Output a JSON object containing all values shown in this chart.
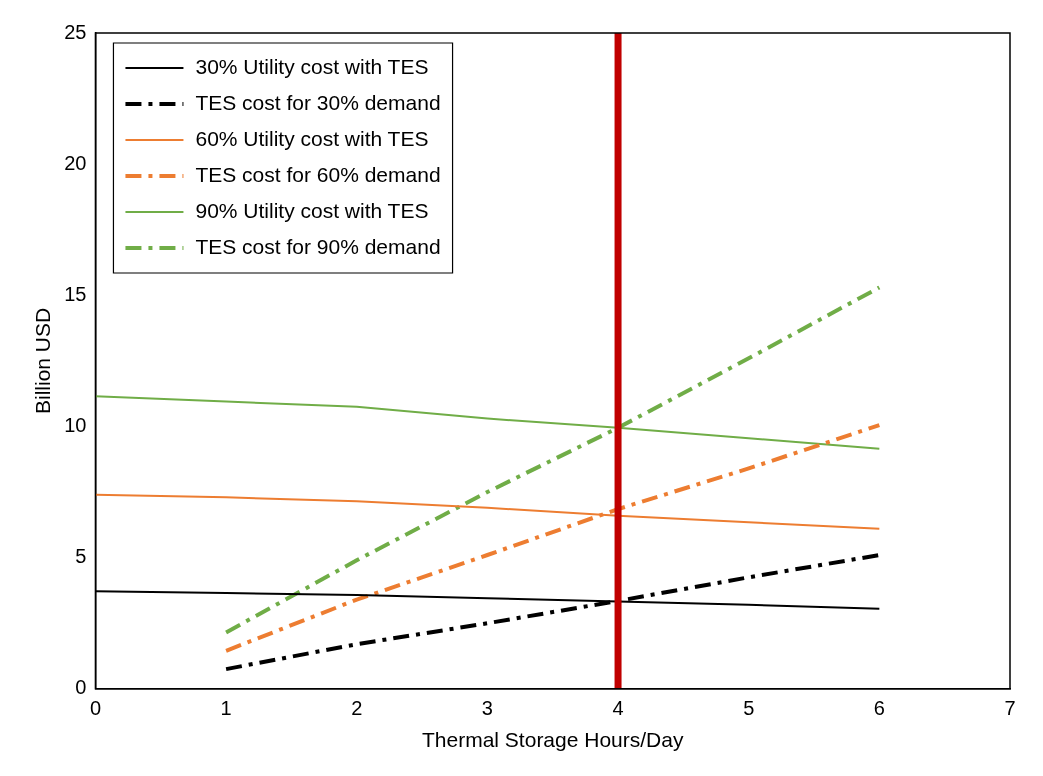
{
  "chart_data": {
    "type": "line",
    "xlabel": "Thermal Storage Hours/Day",
    "ylabel": "Billion USD",
    "xlim": [
      0,
      7
    ],
    "xticks": [
      0,
      1,
      2,
      3,
      4,
      5,
      6,
      7
    ],
    "ylim": [
      0,
      25
    ],
    "yticks": [
      0,
      5,
      10,
      15,
      20,
      25
    ],
    "grid": false,
    "legend": "top left",
    "marker": "none",
    "series": [
      {
        "name": "30% Utility cost with TES",
        "color": "#000000",
        "line_style": "solid",
        "x": [
          0,
          1,
          2,
          3,
          4,
          5,
          6
        ],
        "values": [
          3.72,
          3.65,
          3.58,
          3.45,
          3.33,
          3.2,
          3.05
        ]
      },
      {
        "name": "TES cost for 30% demand",
        "color": "#000000",
        "line_style": "dashed",
        "x": [
          1,
          2,
          3,
          4,
          5,
          6
        ],
        "values": [
          0.75,
          1.7,
          2.5,
          3.35,
          4.25,
          5.1
        ]
      },
      {
        "name": "60% Utility cost with TES",
        "color": "#ed7d31",
        "line_style": "solid",
        "x": [
          0,
          1,
          2,
          3,
          4,
          5,
          6
        ],
        "values": [
          7.4,
          7.3,
          7.15,
          6.9,
          6.6,
          6.35,
          6.1
        ]
      },
      {
        "name": "TES cost for 60% demand",
        "color": "#ed7d31",
        "line_style": "dashed",
        "x": [
          1,
          2,
          3,
          4,
          5,
          6
        ],
        "values": [
          1.45,
          3.4,
          5.1,
          6.85,
          8.4,
          10.05
        ]
      },
      {
        "name": "90% Utility cost with TES",
        "color": "#70ad47",
        "line_style": "solid",
        "x": [
          0,
          1,
          2,
          3,
          4,
          5,
          6
        ],
        "values": [
          11.15,
          10.95,
          10.75,
          10.3,
          9.95,
          9.55,
          9.15
        ]
      },
      {
        "name": "TES cost for 90% demand",
        "color": "#70ad47",
        "line_style": "dashed",
        "x": [
          1,
          2,
          3,
          4,
          5,
          6
        ],
        "values": [
          2.15,
          4.9,
          7.5,
          9.95,
          12.6,
          15.3
        ]
      }
    ],
    "ref_lines": [
      {
        "axis": "x",
        "value": 4,
        "color": "#c00000"
      }
    ]
  }
}
